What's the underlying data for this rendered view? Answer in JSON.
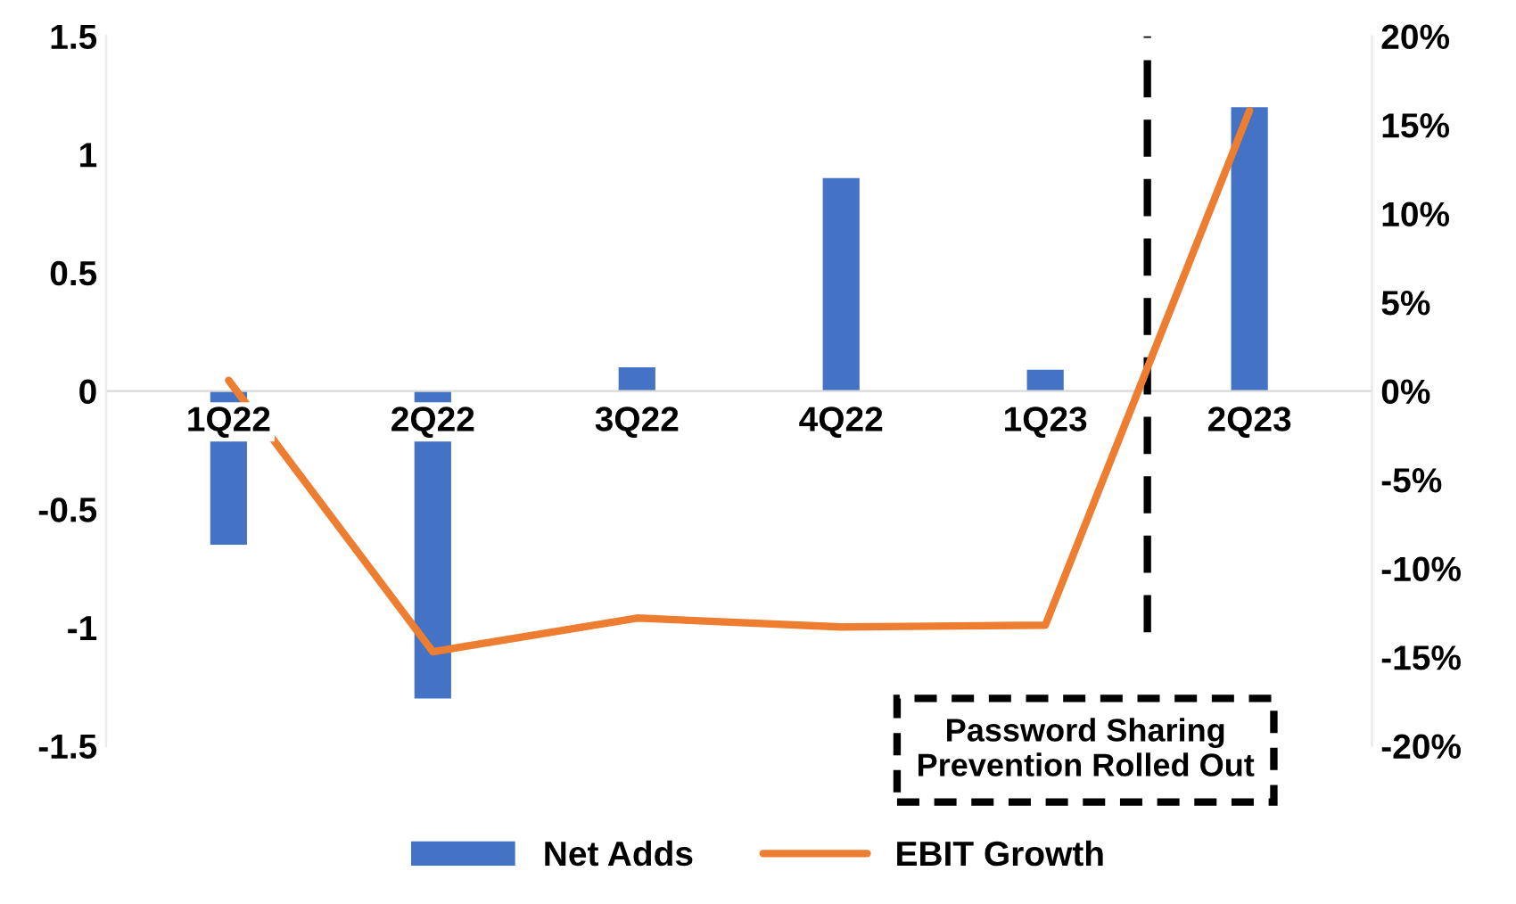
{
  "chart_data": {
    "type": "bar",
    "categories": [
      "1Q22",
      "2Q22",
      "3Q22",
      "4Q22",
      "1Q23",
      "2Q23"
    ],
    "series": [
      {
        "name": "Net Adds",
        "color": "#4472c4",
        "values": [
          -0.65,
          -1.3,
          0.1,
          0.9,
          0.09,
          1.2
        ]
      },
      {
        "name": "EBIT Growth",
        "type": "line",
        "axis": "y2",
        "color": "#ed7d31",
        "values": [
          0.6,
          -14.7,
          -12.8,
          -13.3,
          -13.2,
          15.8
        ]
      }
    ],
    "ylim": [
      -1.5,
      1.5
    ],
    "yticks": [
      {
        "value": -1.5,
        "label": "-1.5"
      },
      {
        "value": -1,
        "label": "-1"
      },
      {
        "value": -0.5,
        "label": "-0.5"
      },
      0,
      0.5,
      1,
      1.5
    ],
    "y2lim": [
      -20,
      20
    ],
    "y2ticks": [
      {
        "value": -20,
        "label": "-20%"
      },
      {
        "value": -15,
        "label": "-15%"
      },
      {
        "value": -10,
        "label": "-10%"
      },
      {
        "value": -5,
        "label": "-5%"
      },
      {
        "value": 0,
        "label": "0%"
      },
      {
        "value": 5,
        "label": "5%"
      },
      {
        "value": 10,
        "label": "10%"
      },
      {
        "value": 15,
        "label": "15%"
      },
      {
        "value": 20,
        "label": "20%"
      }
    ],
    "annotations": [
      "Password Sharing\nPrevention Rolled Out"
    ],
    "legend": "bottom",
    "grid": false
  }
}
